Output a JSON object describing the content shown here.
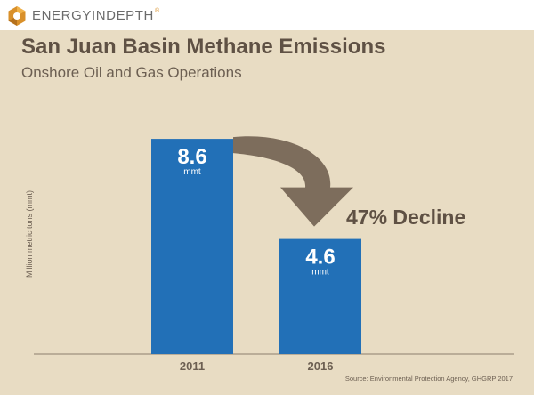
{
  "brand": {
    "name": "ENERGYINDEPTH",
    "registered": "®"
  },
  "chart_data": {
    "type": "bar",
    "title": "San Juan Basin Methane Emissions",
    "subtitle": "Onshore Oil and Gas Operations",
    "xlabel": "",
    "ylabel": "Million metric tons (mmt)",
    "categories": [
      "2011",
      "2016"
    ],
    "values": [
      8.6,
      4.6
    ],
    "value_labels": [
      "8.6",
      "4.6"
    ],
    "unit_label": "mmt",
    "ylim": [
      0,
      10
    ],
    "annotation": "47% Decline",
    "source": "Source: Environmental Protection Agency, GHGRP 2017",
    "grid": false,
    "legend": "none"
  },
  "colors": {
    "bar": "#2270b7",
    "arrow": "#7d6d5c",
    "background": "#e8dcc3",
    "title": "#5f5144",
    "annotation": "#5f5144",
    "axis": "#6c5f52"
  },
  "icons": {
    "logo": "energy-in-depth-logo-icon"
  }
}
